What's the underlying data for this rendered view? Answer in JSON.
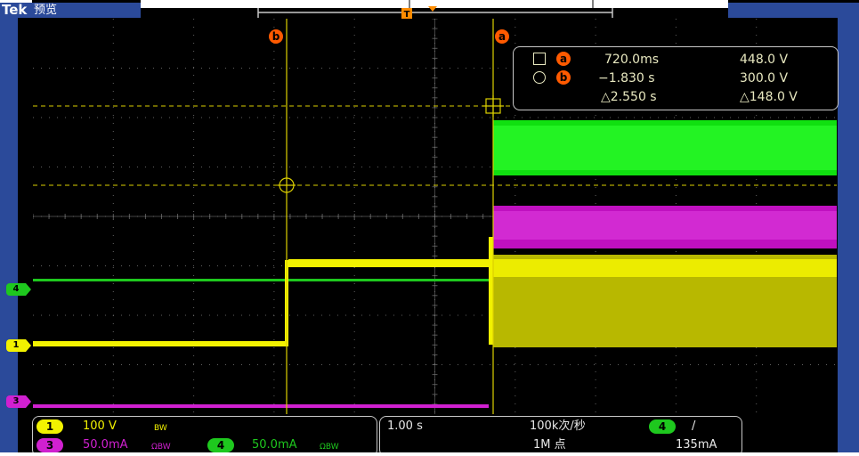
{
  "header": {
    "brand": "Tek",
    "mode": "预览",
    "trigger_marker": "T"
  },
  "colors": {
    "ch1": "#f2f200",
    "ch3": "#d020d0",
    "ch4": "#1ec81e",
    "cursor": "#ddd000",
    "accent": "#ff5a00",
    "frame": "#2b4a9a"
  },
  "cursors": {
    "a_label": "a",
    "b_label": "b",
    "readout": {
      "a": {
        "time": "720.0ms",
        "volt": "448.0 V"
      },
      "b": {
        "time": "−1.830 s",
        "volt": "300.0 V"
      },
      "delta": {
        "time": "△2.550 s",
        "volt": "△148.0 V"
      }
    }
  },
  "channels": {
    "ch1": {
      "num": "1",
      "scale": "100 V",
      "bw": "BW"
    },
    "ch3": {
      "num": "3",
      "scale": "50.0mA",
      "bw": "ΩBW"
    },
    "ch4": {
      "num": "4",
      "scale": "50.0mA",
      "bw": "ΩBW"
    }
  },
  "timebase": {
    "scale": "1.00 s",
    "sample_rate": "100k次/秒",
    "record_length": "1M 点"
  },
  "trigger": {
    "source": "4",
    "slope": "/",
    "level": "135mA"
  }
}
